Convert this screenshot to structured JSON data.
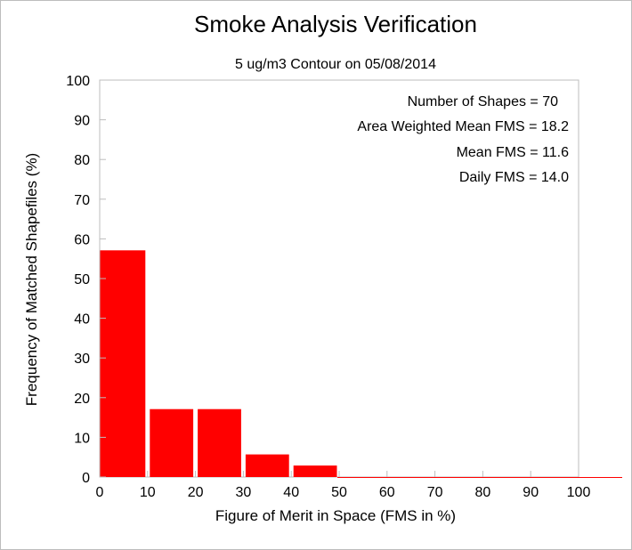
{
  "chart_data": {
    "type": "bar",
    "title": "Smoke Analysis Verification",
    "subtitle": "5 ug/m3 Contour on 05/08/2014",
    "xlabel": "Figure of Merit in Space (FMS in %)",
    "ylabel": "Frequency of Matched Shapefiles (%)",
    "xlim": [
      0,
      100
    ],
    "ylim": [
      0,
      100
    ],
    "x_ticks": [
      "0",
      "10",
      "20",
      "30",
      "40",
      "50",
      "60",
      "70",
      "80",
      "90",
      "100"
    ],
    "y_ticks": [
      "0",
      "10",
      "20",
      "30",
      "40",
      "50",
      "60",
      "70",
      "80",
      "90",
      "100"
    ],
    "bins": [
      {
        "from": 0,
        "to": 10,
        "value": 57.1
      },
      {
        "from": 10,
        "to": 20,
        "value": 17.1
      },
      {
        "from": 20,
        "to": 30,
        "value": 17.1
      },
      {
        "from": 30,
        "to": 40,
        "value": 5.7
      },
      {
        "from": 40,
        "to": 50,
        "value": 2.9
      },
      {
        "from": 50,
        "to": 60,
        "value": 0
      },
      {
        "from": 60,
        "to": 70,
        "value": 0
      },
      {
        "from": 70,
        "to": 80,
        "value": 0
      },
      {
        "from": 80,
        "to": 90,
        "value": 0
      },
      {
        "from": 90,
        "to": 100,
        "value": 0
      }
    ],
    "bar_color": "#ff0000",
    "grid": false,
    "annotations": [
      "Number of Shapes = 70",
      "Area Weighted Mean FMS = 18.2",
      "Mean FMS = 11.6",
      "Daily FMS = 14.0"
    ]
  }
}
